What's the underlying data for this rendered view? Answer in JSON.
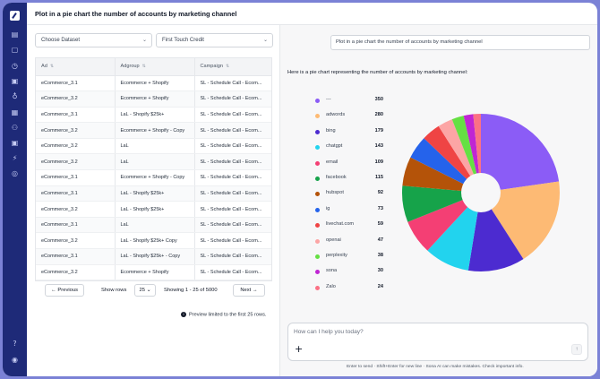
{
  "header": {
    "title": "Plot in a pie chart the number of accounts by marketing channel"
  },
  "sidebar": {
    "icons": [
      "document-icon",
      "chat-icon",
      "clock-icon",
      "image-icon",
      "lightbulb-icon",
      "pin-icon",
      "table-icon",
      "people-icon",
      "image-icon",
      "bolt-icon",
      "circle-icon"
    ],
    "bottom_icons": [
      "help-icon",
      "user-icon"
    ]
  },
  "filters": {
    "dataset_placeholder": "Choose Dataset",
    "credit_value": "First Touch Credit"
  },
  "table": {
    "columns": [
      "Ad",
      "Adgroup",
      "Campaign"
    ],
    "rows": [
      [
        "eCommerce_3.1",
        "Ecommerce + Shopify",
        "SL - Schedule Call - Ecom..."
      ],
      [
        "eCommerce_3.2",
        "Ecommerce + Shopify",
        "SL - Schedule Call - Ecom..."
      ],
      [
        "eCommerce_3.1",
        "LaL - Shopify $25k+",
        "SL - Schedule Call - Ecom..."
      ],
      [
        "eCommerce_3.2",
        "Ecommerce + Shopify - Copy",
        "SL - Schedule Call - Ecom..."
      ],
      [
        "eCommerce_3.2",
        "LaL",
        "SL - Schedule Call - Ecom..."
      ],
      [
        "eCommerce_3.2",
        "LaL",
        "SL - Schedule Call - Ecom..."
      ],
      [
        "eCommerce_3.1",
        "Ecommerce + Shopify - Copy",
        "SL - Schedule Call - Ecom..."
      ],
      [
        "eCommerce_3.1",
        "LaL - Shopify $25k+",
        "SL - Schedule Call - Ecom..."
      ],
      [
        "eCommerce_3.2",
        "LaL - Shopify $25k+",
        "SL - Schedule Call - Ecom..."
      ],
      [
        "eCommerce_3.1",
        "LaL",
        "SL - Schedule Call - Ecom..."
      ],
      [
        "eCommerce_3.2",
        "LaL - Shopify $25k+ Copy",
        "SL - Schedule Call - Ecom..."
      ],
      [
        "eCommerce_3.1",
        "LaL - Shopify $25k+ - Copy",
        "SL - Schedule Call - Ecom..."
      ],
      [
        "eCommerce_3.2",
        "Ecommerce + Shopify",
        "SL - Schedule Call - Ecom..."
      ]
    ]
  },
  "pagination": {
    "previous": "Previous",
    "show_rows_label": "Show rows",
    "rows_value": "25",
    "showing": "Showing 1 - 25 of 5000",
    "next": "Next"
  },
  "preview_note": "Preview limited to the first 25 rows.",
  "chat": {
    "user_message": "Plot in a pie chart the number of accounts by marketing channel",
    "reply": "Here is a pie chart representing the number of accounts by marketing channel:",
    "composer_placeholder": "How can I help you today?",
    "hint": "Enter to send · Shift+Enter for new line · Sona AI can make mistakes. Check important info."
  },
  "chart_data": {
    "type": "pie",
    "donut": true,
    "categories": [
      "---",
      "adwords",
      "bing",
      "chatgpt",
      "email",
      "facebook",
      "hubspot",
      "ig",
      "livechat.com",
      "openai",
      "perplexity",
      "sona",
      "Zalo"
    ],
    "values": [
      350,
      280,
      179,
      143,
      109,
      115,
      92,
      73,
      59,
      47,
      38,
      30,
      24
    ],
    "colors": [
      "#8b5cf6",
      "#fdba74",
      "#4c2bd0",
      "#22d3ee",
      "#f43f74",
      "#16a34a",
      "#b45309",
      "#2563eb",
      "#ef4444",
      "#fca5a5",
      "#65e043",
      "#c026d3",
      "#fb7185"
    ]
  }
}
